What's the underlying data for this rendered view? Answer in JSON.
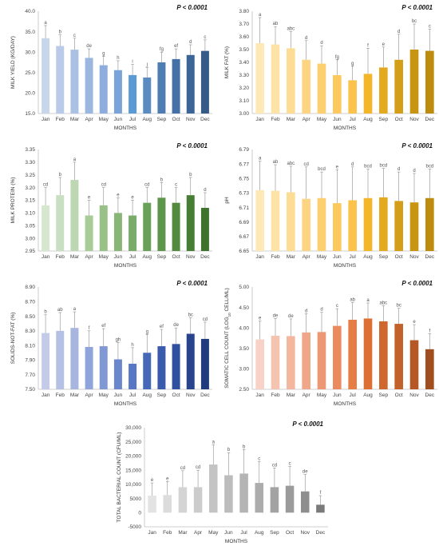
{
  "chart_data": [
    {
      "type": "bar",
      "p_value": "P < 0.0001",
      "xlabel": "MONTHS",
      "ylabel": "MILK YIELD (KG/DAY)",
      "categories": [
        "Jan",
        "Feb",
        "Mar",
        "Apr",
        "May",
        "Jun",
        "Jul",
        "Aug",
        "Sep",
        "Oct",
        "Nov",
        "Dec"
      ],
      "values": [
        33.4,
        31.5,
        30.6,
        28.6,
        26.8,
        25.6,
        24.4,
        23.8,
        27.5,
        28.3,
        29.3,
        30.3
      ],
      "errors": [
        3.1,
        2.7,
        2.8,
        2.2,
        2.2,
        2.3,
        2.6,
        2.4,
        2.5,
        2.5,
        2.5,
        2.7
      ],
      "letters": [
        "a",
        "b",
        "c",
        "de",
        "g",
        "h",
        "i",
        "j",
        "fg",
        "ef",
        "d",
        "c"
      ],
      "colors": [
        "#c8d6ec",
        "#b9cbe8",
        "#aac1e4",
        "#9bb7e0",
        "#8cadde",
        "#7aa3da",
        "#5b9bd5",
        "#5a8cc2",
        "#4f7db3",
        "#4571a6",
        "#3c6597",
        "#365b87"
      ],
      "yticks": [
        "15.0",
        "20.0",
        "25.0",
        "30.0",
        "35.0",
        "40.0"
      ],
      "ylim": [
        15,
        40
      ],
      "tick_values": [
        15,
        20,
        25,
        30,
        35,
        40
      ]
    },
    {
      "type": "bar",
      "p_value": "P < 0.0001",
      "xlabel": "MONTHS",
      "ylabel": "MILK FAT (%)",
      "categories": [
        "Jan",
        "Feb",
        "Mar",
        "Apr",
        "May",
        "Jun",
        "Jul",
        "Aug",
        "Sep",
        "Oct",
        "Nov",
        "Dec"
      ],
      "values": [
        3.55,
        3.54,
        3.51,
        3.42,
        3.39,
        3.3,
        3.26,
        3.31,
        3.36,
        3.42,
        3.5,
        3.49
      ],
      "errors": [
        0.2,
        0.14,
        0.13,
        0.15,
        0.14,
        0.12,
        0.11,
        0.2,
        0.16,
        0.2,
        0.2,
        0.17
      ],
      "letters": [
        "a",
        "ab",
        "abc",
        "d",
        "d",
        "fg",
        "g",
        "f",
        "e",
        "d",
        "bc",
        "c"
      ],
      "colors": [
        "#fde9b8",
        "#fde3a6",
        "#fddc94",
        "#fdd582",
        "#fccf70",
        "#fcc95e",
        "#fbc34c",
        "#f3b628",
        "#e3a91f",
        "#d49e18",
        "#c89512",
        "#bd8b0e"
      ],
      "yticks": [
        "3.00",
        "3.10",
        "3.20",
        "3.30",
        "3.40",
        "3.50",
        "3.60",
        "3.70",
        "3.80"
      ],
      "ylim": [
        3.0,
        3.8
      ],
      "tick_values": [
        3.0,
        3.1,
        3.2,
        3.3,
        3.4,
        3.5,
        3.6,
        3.7,
        3.8
      ]
    },
    {
      "type": "bar",
      "p_value": "P < 0.0001",
      "xlabel": "MONTHS",
      "ylabel": "MILK PROTEIN (%)",
      "categories": [
        "Jan",
        "Feb",
        "Mar",
        "Apr",
        "May",
        "Jun",
        "Jul",
        "Aug",
        "Sep",
        "Oct",
        "Nov",
        "Dec"
      ],
      "values": [
        3.13,
        3.17,
        3.23,
        3.09,
        3.13,
        3.1,
        3.09,
        3.14,
        3.16,
        3.14,
        3.17,
        3.12
      ],
      "errors": [
        0.07,
        0.07,
        0.07,
        0.06,
        0.07,
        0.06,
        0.06,
        0.06,
        0.06,
        0.06,
        0.07,
        0.06
      ],
      "letters": [
        "cd",
        "b",
        "a",
        "e",
        "cd",
        "e",
        "e",
        "cd",
        "b",
        "c",
        "b",
        "d"
      ],
      "colors": [
        "#d6e7d0",
        "#c9dfc1",
        "#bdd7b2",
        "#a9cb97",
        "#99c087",
        "#88b677",
        "#79ac68",
        "#6aa159",
        "#5d954b",
        "#528a40",
        "#477e35",
        "#3e722d"
      ],
      "yticks": [
        "2.95",
        "3.00",
        "3.05",
        "3.10",
        "3.15",
        "3.20",
        "3.25",
        "3.30",
        "3.35"
      ],
      "ylim": [
        2.95,
        3.35
      ],
      "tick_values": [
        2.95,
        3.0,
        3.05,
        3.1,
        3.15,
        3.2,
        3.25,
        3.3,
        3.35
      ]
    },
    {
      "type": "bar",
      "p_value": "P < 0.0001",
      "xlabel": "MONTHS",
      "ylabel": "pH",
      "categories": [
        "Jan",
        "Feb",
        "Mar",
        "Apr",
        "May",
        "Jun",
        "Jul",
        "Aug",
        "Sep",
        "Oct",
        "Nov",
        "Dec"
      ],
      "values": [
        6.734,
        6.733,
        6.731,
        6.722,
        6.723,
        6.716,
        6.72,
        6.723,
        6.724,
        6.719,
        6.717,
        6.723
      ],
      "errors": [
        0.04,
        0.036,
        0.036,
        0.044,
        0.036,
        0.046,
        0.046,
        0.04,
        0.04,
        0.04,
        0.04,
        0.04
      ],
      "letters": [
        "a",
        "ab",
        "abc",
        "cd",
        "bcd",
        "e",
        "d",
        "bcd",
        "bcd",
        "d",
        "d",
        "bcd"
      ],
      "colors": [
        "#fde9b8",
        "#fde3a6",
        "#fddc94",
        "#fdd582",
        "#fccf70",
        "#fcc95e",
        "#fbc34c",
        "#f3b628",
        "#e3a91f",
        "#d49e18",
        "#c89512",
        "#bd8b0e"
      ],
      "yticks": [
        "6.65",
        "6.67",
        "6.69",
        "6.71",
        "6.73",
        "6.75",
        "6.77",
        "6.79"
      ],
      "ylim": [
        6.65,
        6.79
      ],
      "tick_values": [
        6.65,
        6.67,
        6.69,
        6.71,
        6.73,
        6.75,
        6.77,
        6.79
      ]
    },
    {
      "type": "bar",
      "p_value": "P < 0.0001",
      "xlabel": "MONTHS",
      "ylabel": "SOLIDS-NOT-FAT (%)",
      "categories": [
        "Jan",
        "Feb",
        "Mar",
        "Apr",
        "May",
        "Jun",
        "Jul",
        "Aug",
        "Sep",
        "Oct",
        "Nov",
        "Dec"
      ],
      "values": [
        8.27,
        8.3,
        8.34,
        8.08,
        8.09,
        7.91,
        7.85,
        8.0,
        8.09,
        8.12,
        8.26,
        8.19
      ],
      "errors": [
        0.25,
        0.25,
        0.22,
        0.22,
        0.24,
        0.23,
        0.22,
        0.25,
        0.23,
        0.22,
        0.22,
        0.23
      ],
      "letters": [
        "b",
        "ab",
        "a",
        "f",
        "ef",
        "gh",
        "h",
        "g",
        "ef",
        "de",
        "bc",
        "cd"
      ],
      "colors": [
        "#c3cbe8",
        "#b6c0e3",
        "#a8b5de",
        "#8fa4da",
        "#8098d4",
        "#6a86cc",
        "#5776c3",
        "#4668b9",
        "#3a5aae",
        "#2f4f9f",
        "#27448d",
        "#213b7c"
      ],
      "yticks": [
        "7.50",
        "7.70",
        "7.90",
        "8.10",
        "8.30",
        "8.50",
        "8.70",
        "8.90"
      ],
      "ylim": [
        7.5,
        8.9
      ],
      "tick_values": [
        7.5,
        7.7,
        7.9,
        8.1,
        8.3,
        8.5,
        8.7,
        8.9
      ]
    },
    {
      "type": "bar",
      "p_value": "P < 0.0001",
      "xlabel": "MONTHS",
      "ylabel": "SOMATIC CELL COUNT (LOG10 CELL/ML)",
      "categories": [
        "Jan",
        "Feb",
        "Mar",
        "Apr",
        "May",
        "Jun",
        "Jul",
        "Aug",
        "Sep",
        "Oct",
        "Nov",
        "Dec"
      ],
      "values": [
        3.72,
        3.81,
        3.8,
        3.89,
        3.9,
        4.05,
        4.2,
        4.23,
        4.16,
        4.1,
        3.7,
        3.48
      ],
      "errors": [
        0.45,
        0.42,
        0.42,
        0.46,
        0.48,
        0.42,
        0.42,
        0.38,
        0.38,
        0.38,
        0.38,
        0.38
      ],
      "letters": [
        "e",
        "de",
        "de",
        "d",
        "d",
        "c",
        "ab",
        "a",
        "abc",
        "bc",
        "e",
        "f"
      ],
      "colors": [
        "#f8d2c6",
        "#f5c4b1",
        "#f3b79f",
        "#efa689",
        "#ec9874",
        "#ea8a5e",
        "#e67d45",
        "#dc7034",
        "#cf682f",
        "#c3612a",
        "#b55826",
        "#a04d20"
      ],
      "yticks": [
        "2.50",
        "3.00",
        "3.50",
        "4.00",
        "4.50",
        "5.00"
      ],
      "ylim": [
        2.5,
        5.0
      ],
      "tick_values": [
        2.5,
        3.0,
        3.5,
        4.0,
        4.5,
        5.0
      ]
    },
    {
      "type": "bar",
      "p_value": "P < 0.0001",
      "xlabel": "MONTHS",
      "ylabel": "TOTAL BACTERIAL COUNT (CFU/ML)",
      "categories": [
        "Jan",
        "Feb",
        "Mar",
        "Apr",
        "May",
        "Jun",
        "Jul",
        "Aug",
        "Sep",
        "Oct",
        "Nov",
        "Dec"
      ],
      "values": [
        6000,
        6200,
        9000,
        9000,
        17000,
        13200,
        13800,
        10500,
        9000,
        9500,
        7500,
        2800
      ],
      "errors": [
        4500,
        4800,
        5800,
        6000,
        7000,
        8000,
        8500,
        7500,
        6800,
        6800,
        6000,
        3200
      ],
      "letters": [
        "e",
        "e",
        "cd",
        "cd",
        "a",
        "b",
        "b",
        "c",
        "cd",
        "c",
        "de",
        "f"
      ],
      "colors": [
        "#e3e3e3",
        "#dcdcdc",
        "#d4d4d4",
        "#cccccc",
        "#c4c4c4",
        "#bcbcbc",
        "#b4b4b4",
        "#acacac",
        "#a3a3a3",
        "#9b9b9b",
        "#8e8e8e",
        "#7a7a7a"
      ],
      "yticks": [
        "-5000",
        "5000",
        "10,000",
        "15,000",
        "20,000",
        "25,000",
        "30,000"
      ],
      "ylim": [
        -5000,
        30000
      ],
      "tick_values": [
        -5000,
        5000,
        10000,
        15000,
        20000,
        25000,
        30000
      ],
      "extra_tick_zero": "0"
    }
  ]
}
